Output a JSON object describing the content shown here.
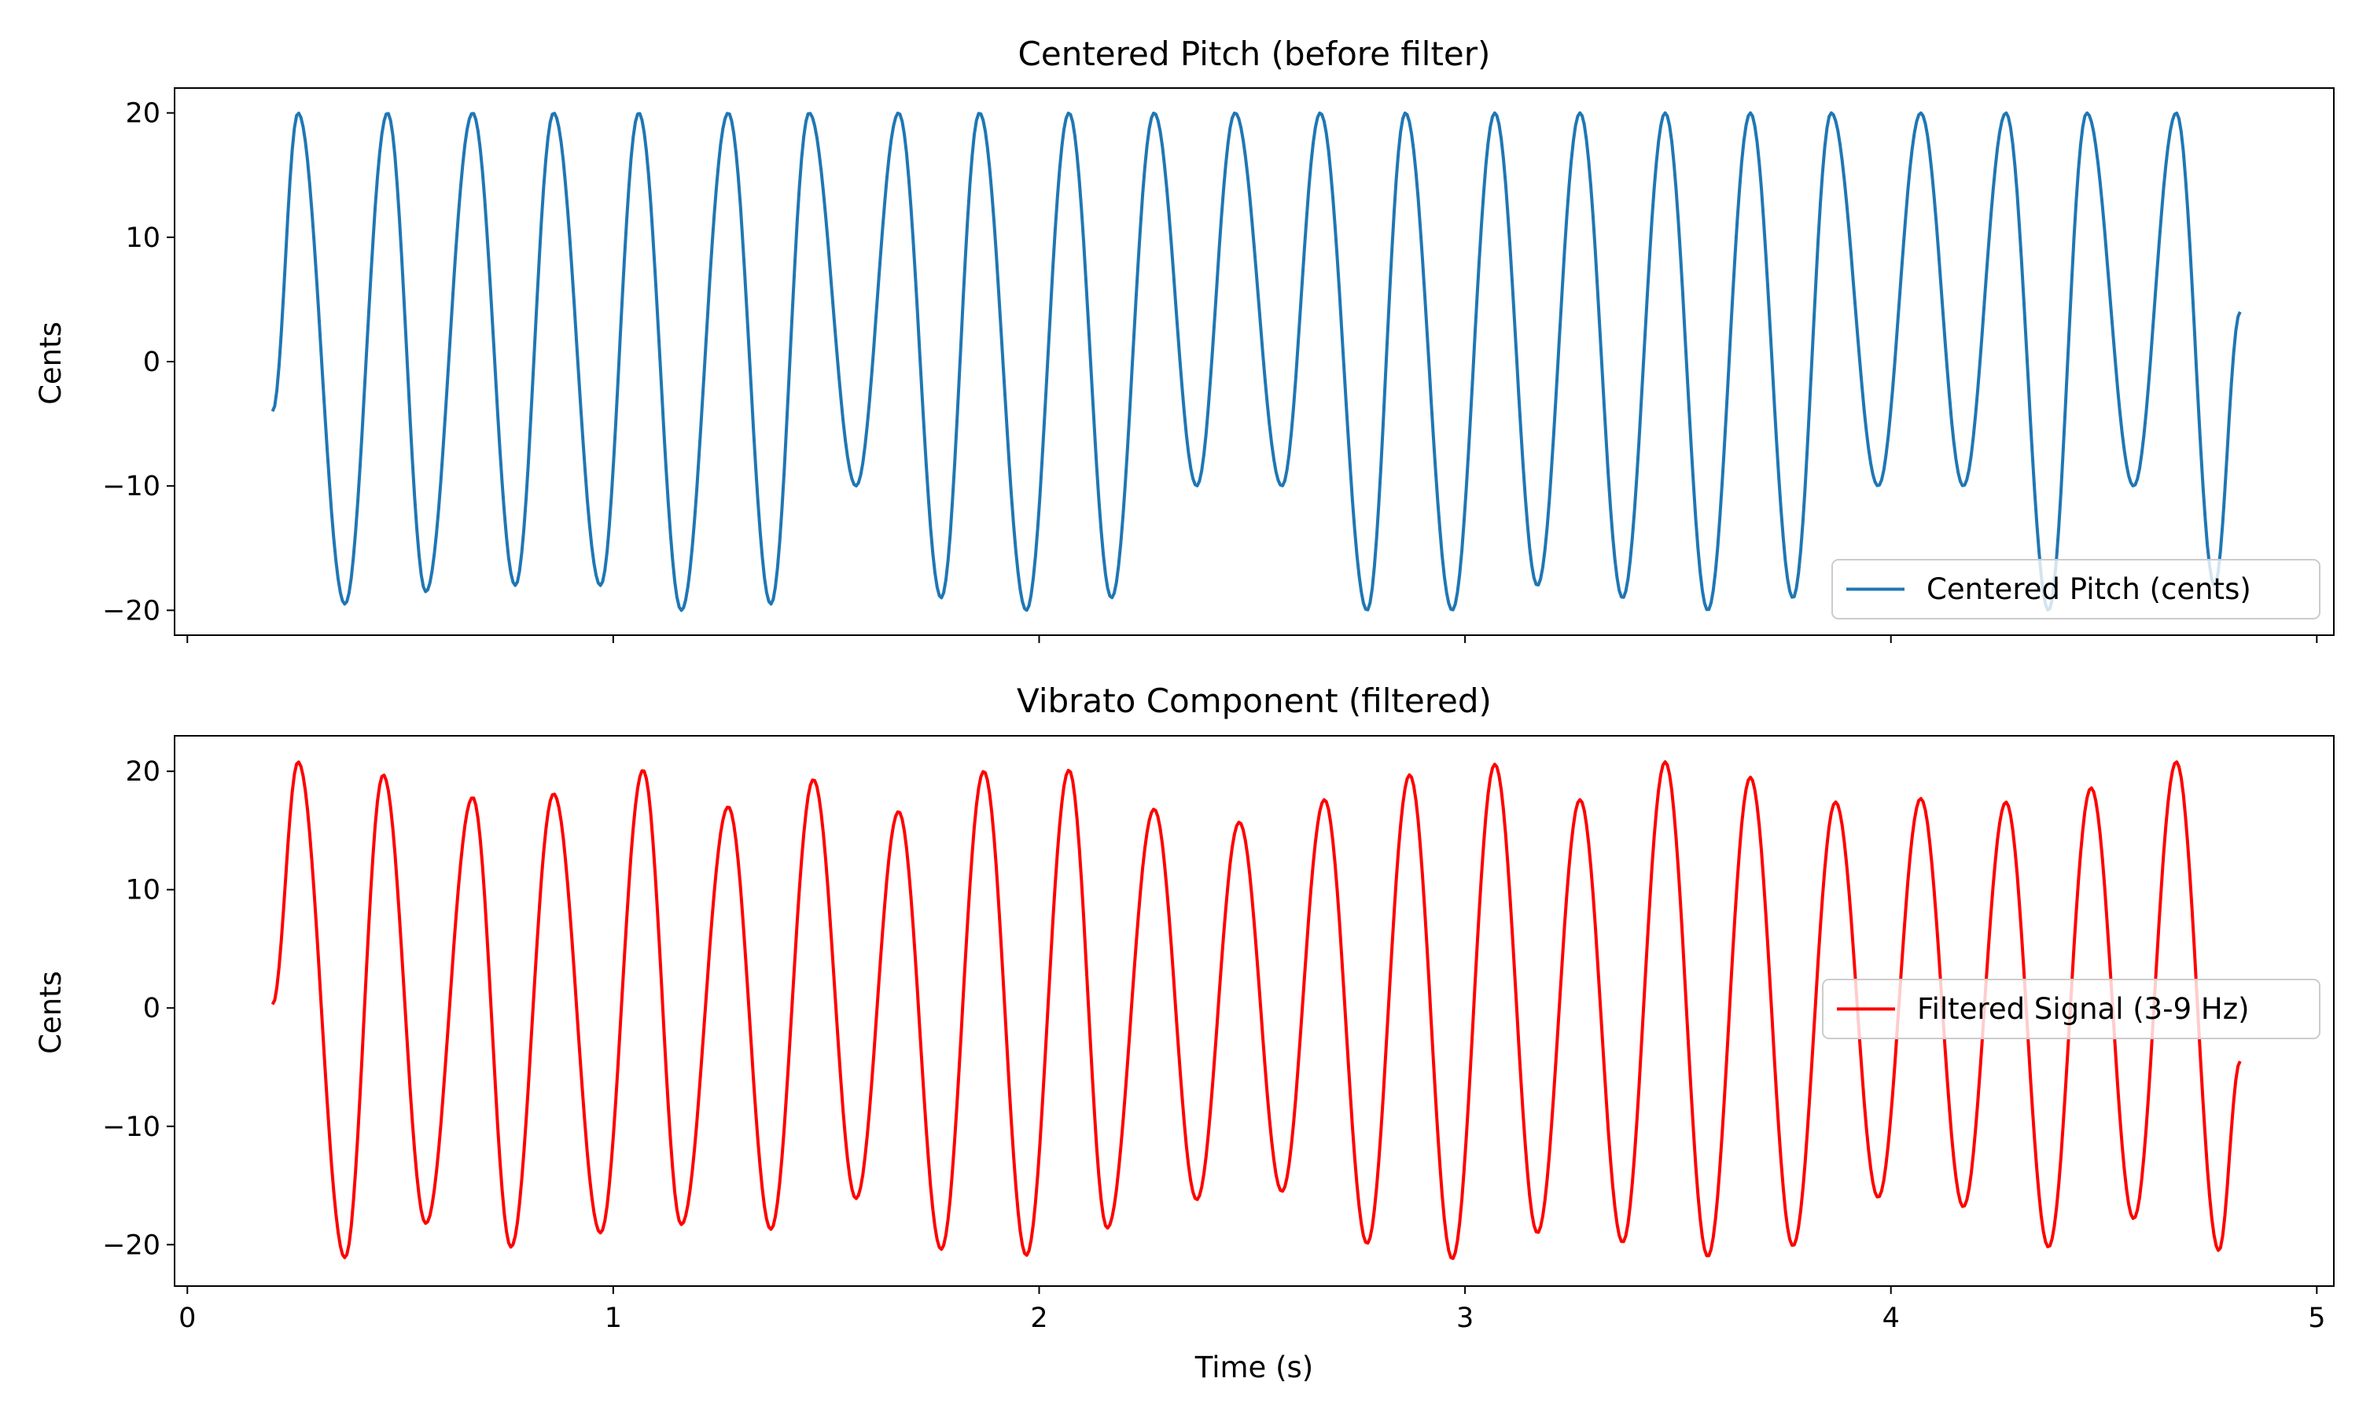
{
  "chart_data": [
    {
      "type": "line",
      "title": "Centered Pitch (before filter)",
      "xlabel": "",
      "ylabel": "Cents",
      "xlim": [
        -0.03,
        5.04
      ],
      "ylim": [
        -22,
        22
      ],
      "xticks": [
        0,
        1,
        2,
        3,
        4,
        5
      ],
      "xticklabels_visible": false,
      "yticks": [
        -20,
        -10,
        0,
        10,
        20
      ],
      "yticklabels": [
        "−20",
        "−10",
        "0",
        "10",
        "20"
      ],
      "grid": false,
      "legend_position": "lower right",
      "series": [
        {
          "name": "Centered Pitch (cents)",
          "color": "#1f77b4",
          "x_start": 0.2,
          "x_end": 4.82,
          "start_value": -4,
          "end_value": 4,
          "peak_times": [
            0.26,
            0.47,
            0.67,
            0.86,
            1.06,
            1.27,
            1.46,
            1.67,
            1.86,
            2.07,
            2.27,
            2.46,
            2.66,
            2.86,
            3.07,
            3.27,
            3.47,
            3.67,
            3.86,
            4.07,
            4.27,
            4.46,
            4.67
          ],
          "peak_values": [
            20,
            20,
            20,
            20,
            20,
            20,
            20,
            20,
            20,
            20,
            20,
            20,
            20,
            20,
            20,
            20,
            20,
            20,
            20,
            20,
            20,
            20,
            20
          ],
          "trough_times": [
            0.37,
            0.56,
            0.77,
            0.97,
            1.16,
            1.37,
            1.57,
            1.77,
            1.97,
            2.17,
            2.37,
            2.57,
            2.77,
            2.97,
            3.17,
            3.37,
            3.57,
            3.77,
            3.97,
            4.17,
            4.37,
            4.57,
            4.76
          ],
          "trough_values": [
            -19.5,
            -18.5,
            -18,
            -18,
            -20,
            -19.5,
            -10,
            -19,
            -20,
            -19,
            -10,
            -10,
            -20,
            -20,
            -18,
            -19,
            -20,
            -19,
            -10,
            -10,
            -20,
            -10,
            -18
          ]
        }
      ]
    },
    {
      "type": "line",
      "title": "Vibrato Component (filtered)",
      "xlabel": "Time (s)",
      "ylabel": "Cents",
      "xlim": [
        -0.03,
        5.04
      ],
      "ylim": [
        -23.5,
        23
      ],
      "xticks": [
        0,
        1,
        2,
        3,
        4,
        5
      ],
      "xticklabels": [
        "0",
        "1",
        "2",
        "3",
        "4",
        "5"
      ],
      "yticks": [
        -20,
        -10,
        0,
        10,
        20
      ],
      "yticklabels": [
        "−20",
        "−10",
        "0",
        "10",
        "20"
      ],
      "grid": false,
      "legend_position": "center right",
      "series": [
        {
          "name": "Filtered Signal (3-9 Hz)",
          "color": "#ff0000",
          "x_start": 0.2,
          "x_end": 4.82,
          "start_value": 0.3,
          "end_value": -4.5,
          "peak_times": [
            0.26,
            0.46,
            0.67,
            0.86,
            1.07,
            1.27,
            1.47,
            1.67,
            1.87,
            2.07,
            2.27,
            2.47,
            2.67,
            2.87,
            3.07,
            3.27,
            3.47,
            3.67,
            3.87,
            4.07,
            4.27,
            4.47,
            4.67
          ],
          "peak_values": [
            20.8,
            19.7,
            17.8,
            18.1,
            20.1,
            17,
            19.3,
            16.6,
            20,
            20.1,
            16.8,
            15.7,
            17.6,
            19.7,
            20.6,
            17.6,
            20.8,
            19.5,
            17.4,
            17.7,
            17.4,
            18.6,
            20.8
          ],
          "trough_times": [
            0.37,
            0.56,
            0.76,
            0.97,
            1.16,
            1.37,
            1.57,
            1.77,
            1.97,
            2.16,
            2.37,
            2.57,
            2.77,
            2.97,
            3.17,
            3.37,
            3.57,
            3.77,
            3.97,
            4.17,
            4.37,
            4.57,
            4.77
          ],
          "trough_values": [
            -21.1,
            -18.2,
            -20.2,
            -19,
            -18.3,
            -18.7,
            -16.1,
            -20.4,
            -20.9,
            -18.6,
            -16.2,
            -15.5,
            -19.9,
            -21.2,
            -19,
            -19.8,
            -21,
            -20.1,
            -16,
            -16.8,
            -20.2,
            -17.8,
            -20.5
          ]
        }
      ]
    }
  ]
}
